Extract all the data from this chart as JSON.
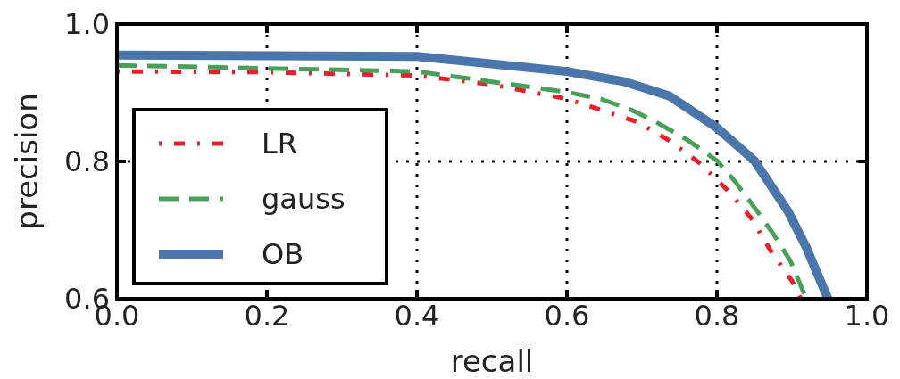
{
  "chart_data": {
    "type": "line",
    "xlabel": "recall",
    "ylabel": "precision",
    "xlim": [
      0,
      1
    ],
    "ylim": [
      0.6,
      1
    ],
    "xticks": [
      {
        "value": 0,
        "label": "0.0"
      },
      {
        "value": 0.2,
        "label": "0.2"
      },
      {
        "value": 0.4,
        "label": "0.4"
      },
      {
        "value": 0.6,
        "label": "0.6"
      },
      {
        "value": 0.8,
        "label": "0.8"
      },
      {
        "value": 1,
        "label": "1.0"
      }
    ],
    "yticks": [
      {
        "value": 0.6,
        "label": "0.6"
      },
      {
        "value": 0.8,
        "label": "0.8"
      },
      {
        "value": 1,
        "label": "1.0"
      }
    ],
    "grid": true,
    "legend": "left",
    "marker": "none",
    "series": [
      {
        "name": "LR",
        "color": "#e8202a",
        "line_style": "dotted",
        "x": [
          0,
          0.2,
          0.4,
          0.5,
          0.6,
          0.645,
          0.695,
          0.737,
          0.779,
          0.814,
          0.846,
          0.871,
          0.9,
          0.912
        ],
        "values": [
          0.931,
          0.93,
          0.925,
          0.912,
          0.891,
          0.875,
          0.857,
          0.83,
          0.796,
          0.758,
          0.717,
          0.671,
          0.626,
          0.6
        ]
      },
      {
        "name": "gauss",
        "color": "#4aa05a",
        "line_style": "dashed",
        "x": [
          0,
          0.4,
          0.6,
          0.645,
          0.686,
          0.721,
          0.761,
          0.8,
          0.824,
          0.852,
          0.876,
          0.898,
          0.919
        ],
        "values": [
          0.94,
          0.931,
          0.901,
          0.891,
          0.875,
          0.856,
          0.831,
          0.801,
          0.771,
          0.73,
          0.693,
          0.655,
          0.6
        ]
      },
      {
        "name": "OB",
        "color": "#4a76ab",
        "line_style": "solid",
        "x": [
          0,
          0.4,
          0.6,
          0.677,
          0.737,
          0.8,
          0.85,
          0.895,
          0.919,
          0.948
        ],
        "values": [
          0.955,
          0.953,
          0.931,
          0.916,
          0.895,
          0.849,
          0.801,
          0.727,
          0.675,
          0.6
        ]
      }
    ]
  }
}
